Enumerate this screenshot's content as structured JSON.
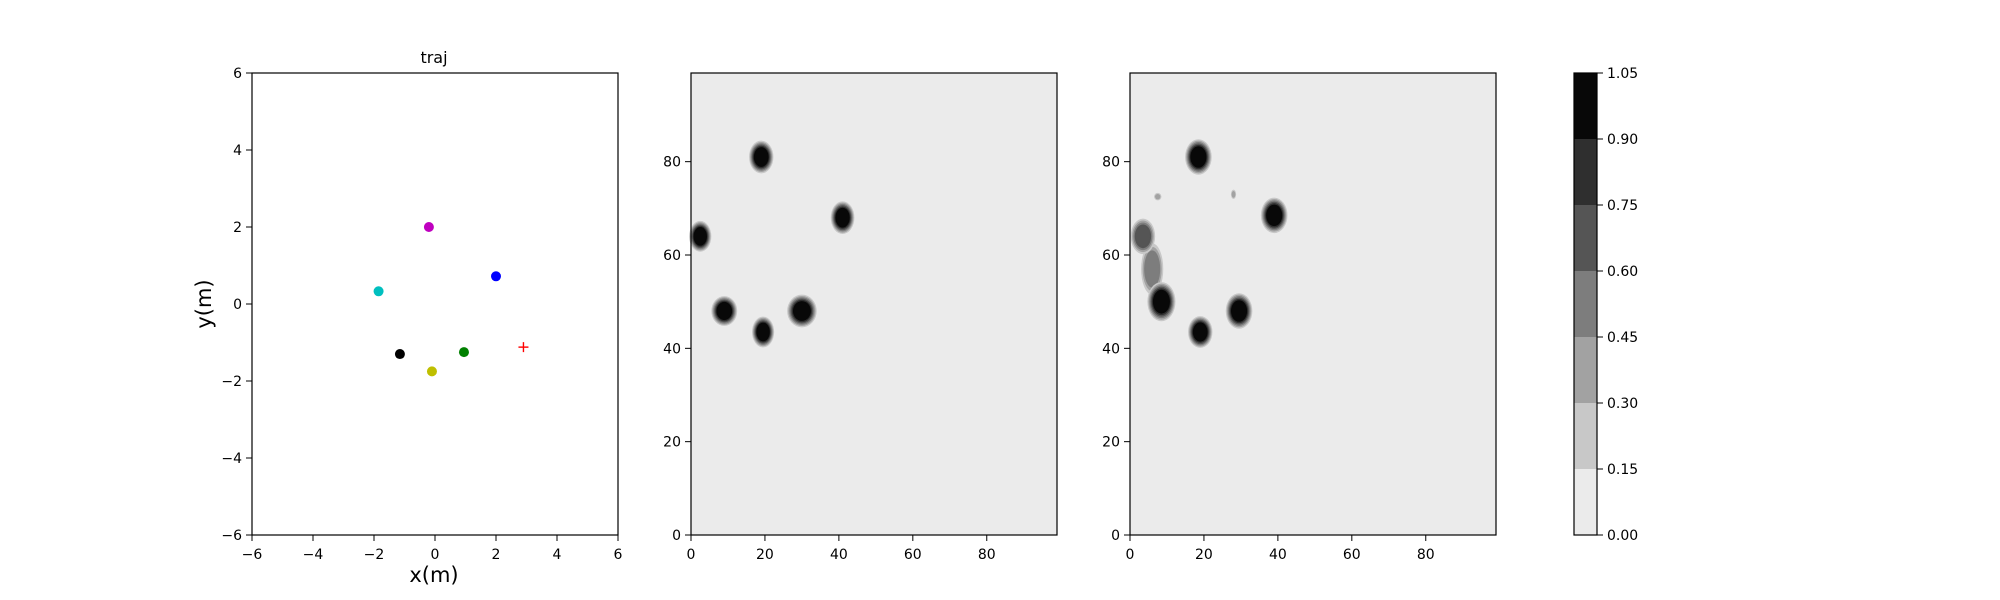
{
  "chart_data": [
    {
      "type": "scatter",
      "title": "traj",
      "xlabel": "x(m)",
      "ylabel": "y(m)",
      "xlim": [
        -6,
        6
      ],
      "ylim": [
        -6,
        6
      ],
      "xticks": [
        "−6",
        "−4",
        "−2",
        "0",
        "2",
        "4",
        "6"
      ],
      "yticks": [
        "−6",
        "−4",
        "−2",
        "0",
        "2",
        "4",
        "6"
      ],
      "grid": false,
      "points": [
        {
          "x": -0.2,
          "y": 2.0,
          "color": "#bf00bf",
          "marker": "circle"
        },
        {
          "x": 2.0,
          "y": 0.72,
          "color": "#0000ff",
          "marker": "circle"
        },
        {
          "x": -1.85,
          "y": 0.33,
          "color": "#00bfbf",
          "marker": "circle"
        },
        {
          "x": -1.15,
          "y": -1.3,
          "color": "#000000",
          "marker": "circle"
        },
        {
          "x": 0.95,
          "y": -1.25,
          "color": "#008000",
          "marker": "circle"
        },
        {
          "x": -0.1,
          "y": -1.75,
          "color": "#bfbf00",
          "marker": "circle"
        },
        {
          "x": 2.9,
          "y": -1.12,
          "color": "#ff0000",
          "marker": "plus"
        }
      ]
    },
    {
      "type": "heatmap",
      "title": "",
      "xlim": [
        0,
        99
      ],
      "ylim": [
        0,
        99
      ],
      "xticks": [
        "0",
        "20",
        "40",
        "60",
        "80"
      ],
      "yticks": [
        "0",
        "20",
        "40",
        "60",
        "80"
      ],
      "background_level": 0.05,
      "blobs": [
        {
          "x": 19,
          "y": 81,
          "rx": 3.3,
          "ry": 3.5,
          "level": 1.0
        },
        {
          "x": 2.5,
          "y": 64,
          "rx": 3.0,
          "ry": 3.3,
          "level": 1.0
        },
        {
          "x": 41,
          "y": 68,
          "rx": 3.2,
          "ry": 3.5,
          "level": 1.0
        },
        {
          "x": 9,
          "y": 48,
          "rx": 3.5,
          "ry": 3.2,
          "level": 1.0
        },
        {
          "x": 30,
          "y": 48,
          "rx": 4.0,
          "ry": 3.5,
          "level": 1.0
        },
        {
          "x": 19.5,
          "y": 43.5,
          "rx": 3.0,
          "ry": 3.3,
          "level": 1.0
        }
      ]
    },
    {
      "type": "heatmap",
      "title": "",
      "xlim": [
        0,
        99
      ],
      "ylim": [
        0,
        99
      ],
      "xticks": [
        "0",
        "20",
        "40",
        "60",
        "80"
      ],
      "yticks": [
        "0",
        "20",
        "40",
        "60",
        "80"
      ],
      "background_level": 0.05,
      "blobs": [
        {
          "x": 18.5,
          "y": 81,
          "rx": 3.6,
          "ry": 3.8,
          "level": 1.0
        },
        {
          "x": 39,
          "y": 68.5,
          "rx": 3.6,
          "ry": 3.8,
          "level": 1.0
        },
        {
          "x": 29.5,
          "y": 48,
          "rx": 3.6,
          "ry": 3.8,
          "level": 1.0
        },
        {
          "x": 19,
          "y": 43.5,
          "rx": 3.3,
          "ry": 3.4,
          "level": 1.0
        },
        {
          "x": 8.5,
          "y": 50,
          "rx": 3.8,
          "ry": 4.2,
          "level": 0.95
        },
        {
          "x": 3.5,
          "y": 64,
          "rx": 3.3,
          "ry": 3.8,
          "level": 0.72
        },
        {
          "x": 6,
          "y": 57,
          "rx": 3.0,
          "ry": 5.5,
          "level": 0.5
        },
        {
          "x": 7.5,
          "y": 72.5,
          "rx": 1.0,
          "ry": 0.8,
          "level": 0.3
        },
        {
          "x": 28,
          "y": 73,
          "rx": 0.7,
          "ry": 1.0,
          "level": 0.3
        }
      ]
    }
  ],
  "colorbar": {
    "ticks": [
      "0.00",
      "0.15",
      "0.30",
      "0.45",
      "0.60",
      "0.75",
      "0.90",
      "1.05"
    ],
    "levels": [
      0.0,
      0.15,
      0.3,
      0.45,
      0.6,
      0.75,
      0.9,
      1.05
    ],
    "colors": [
      "#ebebeb",
      "#c8c8c8",
      "#a2a2a2",
      "#7d7d7d",
      "#555555",
      "#2f2f2f",
      "#080808"
    ]
  }
}
